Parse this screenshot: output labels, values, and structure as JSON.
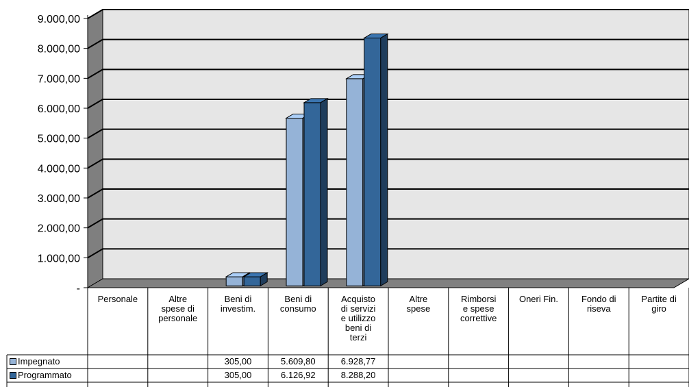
{
  "chart_data": {
    "type": "bar",
    "categories": [
      "Personale",
      "Altre spese di personale",
      "Beni di investim.",
      "Beni di consumo",
      "Acquisto di servizi e utilizzo beni di terzi",
      "Altre spese",
      "Rimborsi e spese correttive",
      "Oneri Fin.",
      "Fondo di riseva",
      "Partite di giro"
    ],
    "category_lines": [
      [
        "Personale"
      ],
      [
        "Altre",
        "spese di",
        "personale"
      ],
      [
        "Beni di",
        "investim."
      ],
      [
        "Beni di",
        "consumo"
      ],
      [
        "Acquisto",
        "di servizi",
        "e utilizzo",
        "beni di",
        "terzi"
      ],
      [
        "Altre",
        "spese"
      ],
      [
        "Rimborsi",
        "e spese",
        "correttive"
      ],
      [
        "Oneri Fin."
      ],
      [
        "Fondo di",
        "riseva"
      ],
      [
        "Partite di",
        "giro"
      ]
    ],
    "series": [
      {
        "name": "Impegnato",
        "color": "#95b3d7",
        "values": [
          null,
          null,
          305.0,
          5609.8,
          6928.77,
          null,
          null,
          null,
          null,
          null
        ],
        "labels": [
          "",
          "",
          "305,00",
          "5.609,80",
          "6.928,77",
          "",
          "",
          "",
          "",
          ""
        ]
      },
      {
        "name": "Programmato",
        "color": "#336699",
        "values": [
          null,
          null,
          305.0,
          6126.92,
          8288.2,
          null,
          null,
          null,
          null,
          null
        ],
        "labels": [
          "",
          "",
          "305,00",
          "6.126,92",
          "8.288,20",
          "",
          "",
          "",
          "",
          ""
        ]
      }
    ],
    "y_ticks": [
      0,
      1000,
      2000,
      3000,
      4000,
      5000,
      6000,
      7000,
      8000,
      9000
    ],
    "y_tick_labels": [
      "-",
      "1.000,00",
      "2.000,00",
      "3.000,00",
      "4.000,00",
      "5.000,00",
      "6.000,00",
      "7.000,00",
      "8.000,00",
      "9.000,00"
    ],
    "ylim": [
      0,
      9000
    ],
    "grid": true,
    "chart_style": "3d-clustered-column with data table",
    "legend_placement": "data table (bottom-left)",
    "colors": {
      "wall": "#e6e6e6",
      "side_wall": "#7f7f7f",
      "floor": "#808080"
    }
  }
}
